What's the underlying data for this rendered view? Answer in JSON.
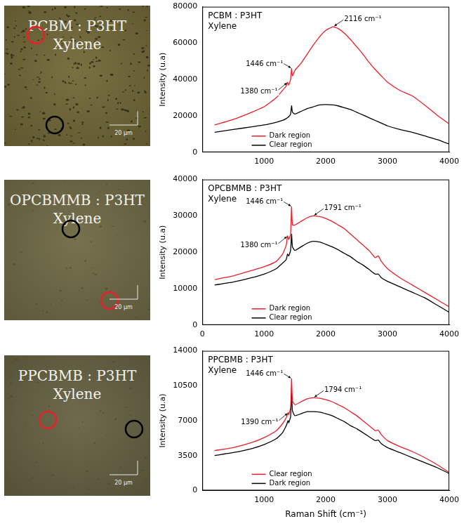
{
  "micrographs": [
    {
      "label": "PCBM : P3HT",
      "sublabel": "Xylene",
      "scale_bar": "20 µm"
    },
    {
      "label": "OPCBMMB : P3HT",
      "sublabel": "Xylene",
      "scale_bar": "20 µm"
    },
    {
      "label": "PPCBMB : P3HT",
      "sublabel": "Xylene",
      "scale_bar": "20 µm"
    }
  ],
  "chart_data": [
    {
      "type": "line",
      "title": "PCBM : P3HT",
      "subtitle": "Xylene",
      "y_label": "Intensity (u.a)",
      "x": [
        200,
        500,
        800,
        1000,
        1200,
        1300,
        1360,
        1380,
        1400,
        1430,
        1446,
        1460,
        1500,
        1600,
        1700,
        1800,
        1900,
        2000,
        2116,
        2200,
        2300,
        2400,
        2500,
        2600,
        2700,
        2800,
        2900,
        3000,
        3200,
        3400,
        3600,
        3800,
        4000
      ],
      "series": [
        {
          "name": "Dark region",
          "color": "#e8202a",
          "values": [
            15000,
            18000,
            22000,
            25000,
            30000,
            34000,
            36500,
            38500,
            37000,
            40000,
            46000,
            42000,
            45000,
            49000,
            54000,
            59000,
            63500,
            67000,
            69000,
            68000,
            65500,
            62000,
            58000,
            54000,
            49500,
            45500,
            42000,
            38500,
            34000,
            31000,
            26000,
            20500,
            15500
          ]
        },
        {
          "name": "Clear region",
          "color": "#000000",
          "values": [
            11000,
            12500,
            14000,
            15000,
            16500,
            17500,
            18500,
            19000,
            19500,
            21000,
            25500,
            22000,
            21000,
            22500,
            24000,
            25000,
            26000,
            26200,
            26000,
            25500,
            24500,
            23500,
            22000,
            20500,
            19000,
            17500,
            16000,
            14500,
            12500,
            11000,
            9000,
            7000,
            4500
          ]
        }
      ],
      "annotations": [
        {
          "text": "1446 cm⁻¹",
          "x": 1446,
          "y": 46000
        },
        {
          "text": "1380 cm⁻¹",
          "x": 1380,
          "y": 38500
        },
        {
          "text": "2116 cm⁻¹",
          "x": 2116,
          "y": 69000
        }
      ],
      "xlim": [
        0,
        4000
      ],
      "xticks": [
        1000,
        2000,
        3000,
        4000
      ],
      "ylim": [
        0,
        80000
      ],
      "yticks": [
        0,
        20000,
        40000,
        60000,
        80000
      ],
      "grid": false,
      "legend": "lower left"
    },
    {
      "type": "line",
      "title": "OPCBMMB : P3HT",
      "subtitle": "Xylene",
      "y_label": "Intensity (u.a)",
      "x": [
        200,
        500,
        800,
        1000,
        1200,
        1300,
        1360,
        1380,
        1400,
        1430,
        1446,
        1460,
        1500,
        1600,
        1700,
        1791,
        1900,
        2000,
        2100,
        2200,
        2300,
        2400,
        2500,
        2600,
        2700,
        2800,
        2850,
        2900,
        3000,
        3200,
        3400,
        3600,
        3800,
        4000
      ],
      "series": [
        {
          "name": "Dark region",
          "color": "#e8202a",
          "values": [
            12500,
            13500,
            15000,
            16000,
            17500,
            19500,
            22000,
            24500,
            23500,
            25000,
            32500,
            27500,
            27500,
            28500,
            29500,
            30000,
            29800,
            29300,
            28500,
            27500,
            26500,
            25000,
            23500,
            22000,
            20500,
            18500,
            19000,
            17500,
            15500,
            13000,
            11000,
            9000,
            7000,
            5000
          ]
        },
        {
          "name": "Clear region",
          "color": "#000000",
          "values": [
            11000,
            11800,
            13000,
            14000,
            15500,
            17000,
            18000,
            19500,
            19000,
            20500,
            25000,
            21500,
            20500,
            21500,
            22500,
            23000,
            22800,
            22200,
            21500,
            20700,
            19700,
            18800,
            17500,
            16500,
            15300,
            14000,
            14000,
            13000,
            12000,
            10500,
            9000,
            7500,
            5500,
            3500
          ]
        }
      ],
      "annotations": [
        {
          "text": "1446 cm⁻¹",
          "x": 1446,
          "y": 32500
        },
        {
          "text": "1380 cm⁻¹",
          "x": 1380,
          "y": 24500
        },
        {
          "text": "1791 cm⁻¹",
          "x": 1791,
          "y": 30000
        }
      ],
      "xlim": [
        0,
        4000
      ],
      "xticks": [
        0,
        1000,
        2000,
        3000,
        4000
      ],
      "ylim": [
        0,
        40000
      ],
      "yticks": [
        0,
        10000,
        20000,
        30000,
        40000
      ],
      "grid": false,
      "legend": "lower left"
    },
    {
      "type": "line",
      "title": "PPCBMB : P3HT",
      "subtitle": "Xylene",
      "y_label": "Intensity (u.a)",
      "x_label": "Raman Shift (cm⁻¹)",
      "x": [
        200,
        500,
        800,
        1000,
        1200,
        1300,
        1360,
        1390,
        1400,
        1430,
        1446,
        1460,
        1500,
        1600,
        1700,
        1794,
        1900,
        2000,
        2100,
        2200,
        2300,
        2400,
        2500,
        2600,
        2700,
        2800,
        2850,
        2900,
        3000,
        3200,
        3400,
        3600,
        3800,
        4000
      ],
      "series": [
        {
          "name": "Clear region",
          "color": "#e8202a",
          "values": [
            4000,
            4300,
            4800,
            5300,
            6000,
            6700,
            7300,
            7800,
            7600,
            8300,
            11200,
            9000,
            8600,
            8900,
            9200,
            9300,
            9250,
            9100,
            8900,
            8600,
            8300,
            7900,
            7500,
            7000,
            6500,
            6000,
            6050,
            5600,
            5000,
            4400,
            3900,
            3300,
            2600,
            1800
          ]
        },
        {
          "name": "Dark region",
          "color": "#000000",
          "values": [
            3500,
            3800,
            4200,
            4600,
            5200,
            5800,
            6500,
            7000,
            6800,
            7400,
            9800,
            8000,
            7500,
            7700,
            7900,
            7900,
            7850,
            7700,
            7500,
            7200,
            6900,
            6500,
            6200,
            5800,
            5400,
            5000,
            5050,
            4700,
            4300,
            3800,
            3300,
            2800,
            2300,
            1700
          ]
        }
      ],
      "annotations": [
        {
          "text": "1446 cm⁻¹",
          "x": 1446,
          "y": 11200
        },
        {
          "text": "1390 cm⁻¹",
          "x": 1390,
          "y": 7800
        },
        {
          "text": "1794 cm⁻¹",
          "x": 1794,
          "y": 9300
        }
      ],
      "xlim": [
        0,
        4000
      ],
      "xticks": [
        1000,
        2000,
        3000,
        4000
      ],
      "ylim": [
        0,
        14000
      ],
      "yticks": [
        0,
        3500,
        7000,
        10500,
        14000
      ],
      "grid": false,
      "legend": "lower left"
    }
  ]
}
